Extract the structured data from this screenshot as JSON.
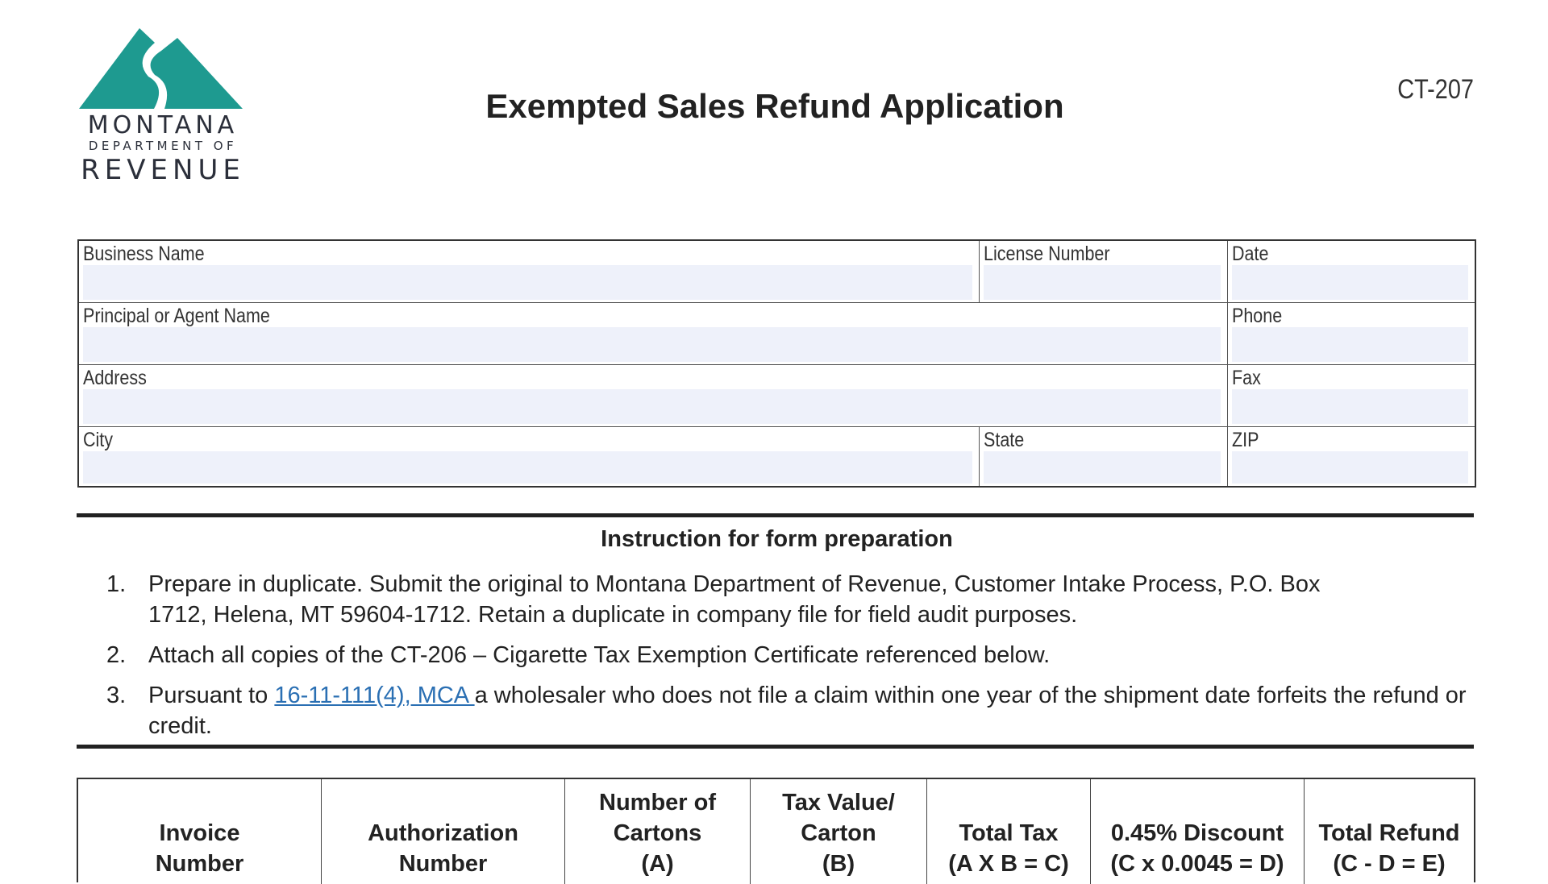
{
  "logo": {
    "line1": "MONTANA",
    "line2": "DEPARTMENT OF",
    "line3": "REVENUE",
    "color": "#1e9a90"
  },
  "title": "Exempted Sales Refund Application",
  "form_number": "CT-207",
  "info_fields": [
    {
      "label": "Business Name",
      "value": ""
    },
    {
      "label": "License Number",
      "value": ""
    },
    {
      "label": "Date",
      "value": ""
    },
    {
      "label": "Principal or Agent Name",
      "value": ""
    },
    {
      "label": "Phone",
      "value": ""
    },
    {
      "label": "Address",
      "value": ""
    },
    {
      "label": "Fax",
      "value": ""
    },
    {
      "label": "City",
      "value": ""
    },
    {
      "label": "State",
      "value": ""
    },
    {
      "label": "ZIP",
      "value": ""
    }
  ],
  "instructions": {
    "heading": "Instruction for form preparation",
    "items": [
      {
        "num": "1.",
        "text": "Prepare in duplicate. Submit the original to Montana Department of Revenue, Customer Intake Process, P.O. Box 1712, Helena, MT 59604-1712. Retain a duplicate in company file for field audit purposes."
      },
      {
        "num": "2.",
        "text": "Attach all copies of the CT-206 – Cigarette Tax Exemption Certificate referenced below."
      },
      {
        "num": "3.",
        "pre": "Pursuant to ",
        "link": "16-11-111(4), MCA ",
        "post": "a wholesaler who does not file a claim within one year of the shipment date forfeits the refund or credit."
      }
    ]
  },
  "table_headers": [
    [
      "",
      "Invoice",
      "Number"
    ],
    [
      "",
      "Authorization",
      "Number"
    ],
    [
      "Number of",
      "Cartons",
      "(A)"
    ],
    [
      "Tax Value/",
      "Carton",
      "(B)"
    ],
    [
      "",
      "Total Tax",
      "(A X B = C)"
    ],
    [
      "",
      "0.45% Discount",
      "(C x 0.0045 = D)"
    ],
    [
      "",
      "Total Refund",
      "(C - D = E)"
    ]
  ]
}
